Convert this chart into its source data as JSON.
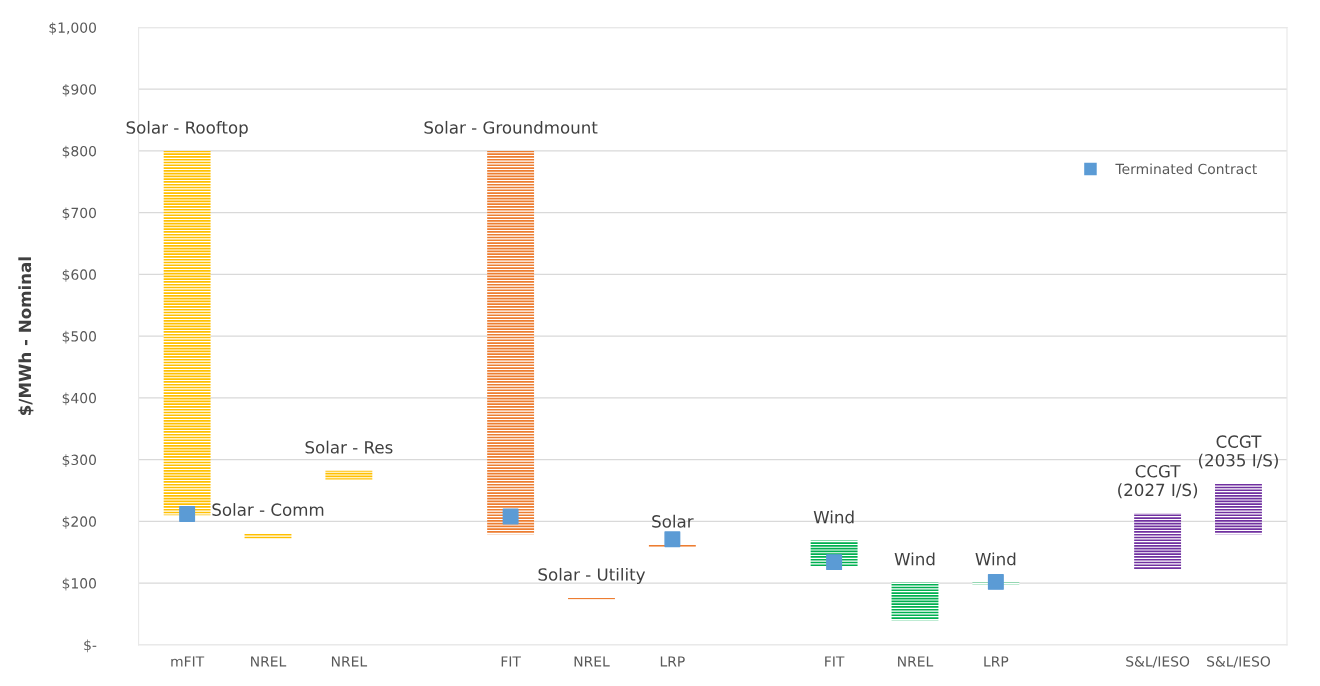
{
  "chart_data": {
    "type": "bar",
    "ylabel": "$/MWh - Nominal",
    "categories": [
      "mFIT",
      "NREL",
      "NREL",
      null,
      "FIT",
      "NREL",
      "LRP",
      null,
      "FIT",
      "NREL",
      "LRP",
      null,
      "S&L/IESO",
      "S&L/IESO"
    ],
    "series": [
      {
        "base": [
          210,
          172,
          268,
          null,
          179,
          74,
          159,
          null,
          126,
          40,
          98,
          null,
          123,
          179
        ],
        "values": [
          590,
          9,
          14,
          null,
          621,
          2,
          3,
          null,
          43,
          61,
          3,
          null,
          90,
          82
        ],
        "colors": [
          "#ffc000",
          "#ffc000",
          "#ffc000",
          null,
          "#ed7d31",
          "#ed7d31",
          "#ed7d31",
          null,
          "#00b050",
          "#00b050",
          "#00b050",
          null,
          "#7030a0",
          "#7030a0"
        ]
      },
      {
        "type": "scatter",
        "name": "Terminated Contract",
        "color": "#5b9bd5",
        "marker": "square",
        "values": [
          212,
          null,
          null,
          null,
          208,
          null,
          171,
          null,
          134,
          null,
          102,
          null,
          null,
          null
        ]
      }
    ],
    "ylim": [
      0,
      1000
    ],
    "yticks": [
      {
        "value": 0,
        "label": "$-"
      },
      {
        "value": 100,
        "label": "$100"
      },
      {
        "value": 200,
        "label": "$200"
      },
      {
        "value": 300,
        "label": "$300"
      },
      {
        "value": 400,
        "label": "$400"
      },
      {
        "value": 500,
        "label": "$500"
      },
      {
        "value": 600,
        "label": "$600"
      },
      {
        "value": 700,
        "label": "$700"
      },
      {
        "value": 800,
        "label": "$800"
      },
      {
        "value": 900,
        "label": "$900"
      },
      {
        "value": 1000,
        "label": "$1,000"
      }
    ],
    "grid": "y",
    "legend": "top right",
    "annotations": [
      "Solar - Rooftop",
      "Solar - Comm",
      "Solar - Res",
      "Solar - Groundmount",
      "Solar - Utility",
      "Solar",
      "Wind",
      "Wind",
      "Wind",
      "CCGT\n(2027 I/S)",
      "CCGT\n(2035 I/S)"
    ]
  }
}
